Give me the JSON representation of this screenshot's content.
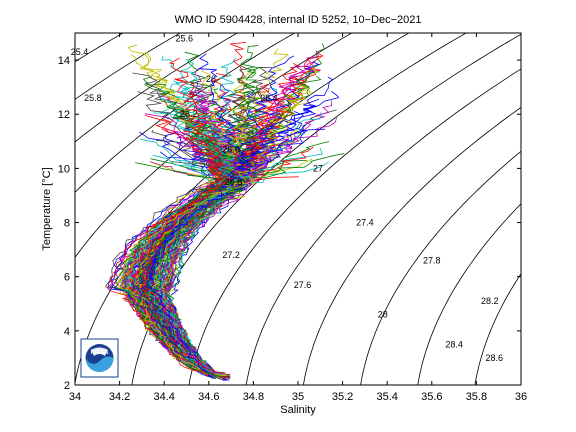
{
  "chart_data": {
    "type": "line",
    "title": "WMO ID 5904428, internal ID 5252, 10−Dec−2021",
    "xlabel": "Salinity",
    "ylabel": "Temperature [°C]",
    "xlim": [
      34,
      36
    ],
    "ylim": [
      2,
      15
    ],
    "x_ticks": [
      "34",
      "34.2",
      "34.4",
      "34.6",
      "34.8",
      "35",
      "35.2",
      "35.4",
      "35.6",
      "35.8",
      "36"
    ],
    "y_ticks": [
      "2",
      "4",
      "6",
      "8",
      "10",
      "12",
      "14"
    ],
    "grid": false,
    "legend": "none",
    "density_contours": [
      {
        "label": "25.4",
        "s": 34.02,
        "t": 14.3
      },
      {
        "label": "25.6",
        "s": 34.49,
        "t": 14.8
      },
      {
        "label": "25.8",
        "s": 34.08,
        "t": 12.6
      },
      {
        "label": "26",
        "s": 34.61,
        "t": 13.3
      },
      {
        "label": "26.2",
        "s": 34.51,
        "t": 12.0
      },
      {
        "label": "26.4",
        "s": 34.87,
        "t": 12.6
      },
      {
        "label": "26.6",
        "s": 34.7,
        "t": 10.7
      },
      {
        "label": "26.8",
        "s": 34.71,
        "t": 9.5
      },
      {
        "label": "27",
        "s": 35.09,
        "t": 10.0
      },
      {
        "label": "27.2",
        "s": 34.7,
        "t": 6.8
      },
      {
        "label": "27.4",
        "s": 35.3,
        "t": 8.0
      },
      {
        "label": "27.6",
        "s": 35.02,
        "t": 5.7
      },
      {
        "label": "27.8",
        "s": 35.6,
        "t": 6.6
      },
      {
        "label": "28",
        "s": 35.38,
        "t": 4.6
      },
      {
        "label": "28.2",
        "s": 35.86,
        "t": 5.1
      },
      {
        "label": "28.4",
        "s": 35.7,
        "t": 3.5
      },
      {
        "label": "28.6",
        "s": 35.88,
        "t": 3.0
      }
    ],
    "profiles_summary": {
      "count_approx": 150,
      "description": "Temperature-salinity profiles of many colors",
      "deep_end": {
        "s": 34.68,
        "t": 2.3
      },
      "minimum_salinity_near": {
        "s": 34.32,
        "t": 5.5
      },
      "surface_spread_salinity": [
        34.2,
        35.2
      ],
      "surface_spread_temperature": [
        10.0,
        14.8
      ]
    },
    "logo": {
      "name": "noaa-logo",
      "text": "NOAA"
    },
    "series_colors": [
      "#0000ff",
      "#008000",
      "#ff0000",
      "#00bfbf",
      "#bf00bf",
      "#bfbf00",
      "#404040"
    ]
  }
}
